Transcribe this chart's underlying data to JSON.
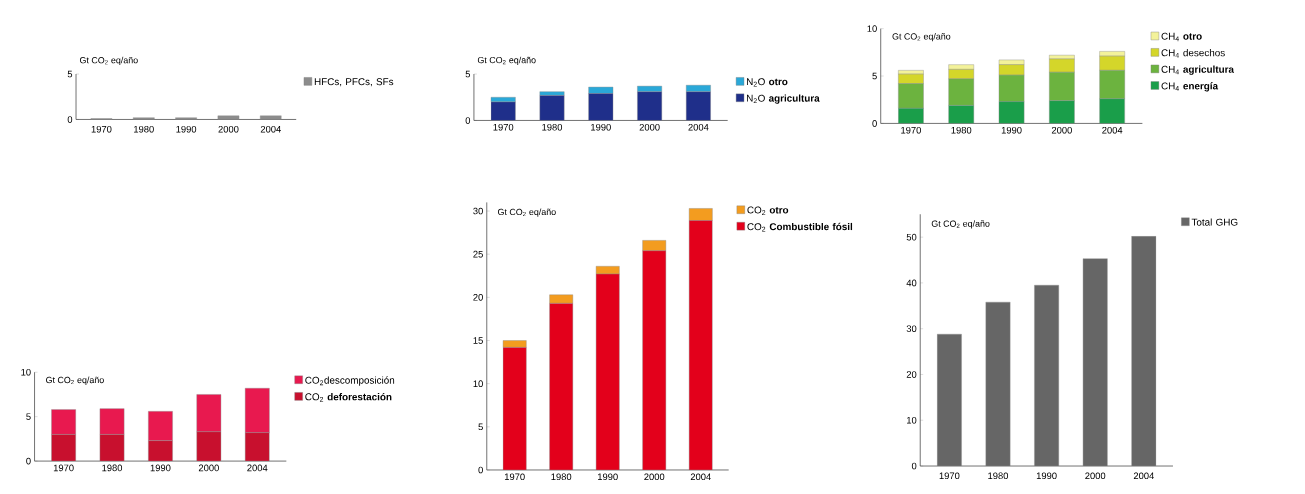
{
  "chart_data": [
    {
      "type": "bar",
      "ylabel": "Gt CO$_{2}$ eq/año",
      "categories": [
        "1970",
        "1980",
        "1990",
        "2000",
        "2004"
      ],
      "ylim": [
        0,
        5
      ],
      "yticks": [
        0,
        5
      ],
      "legend": "right",
      "series": [
        {
          "name": "HFCs, PFCs, SFs",
          "color": "#8c8c8c",
          "values": [
            0.1,
            0.2,
            0.2,
            0.4,
            0.4
          ]
        }
      ]
    },
    {
      "type": "bar",
      "stacked": true,
      "ylabel": "Gt CO$_{2}$ eq/año",
      "categories": [
        "1970",
        "1980",
        "1990",
        "2000",
        "2004"
      ],
      "ylim": [
        0,
        5
      ],
      "yticks": [
        0,
        5
      ],
      "legend": "right",
      "series": [
        {
          "name": "N$_{2}$O **agricultura**",
          "color": "#1f2f8a",
          "values": [
            2.0,
            2.7,
            2.9,
            3.1,
            3.1
          ]
        },
        {
          "name": "N$_{2}$O **otro**",
          "color": "#2aa8d8",
          "values": [
            0.5,
            0.4,
            0.7,
            0.6,
            0.7
          ]
        }
      ]
    },
    {
      "type": "bar",
      "stacked": true,
      "ylabel": "Gt CO$_{2}$ eq/año",
      "categories": [
        "1970",
        "1980",
        "1990",
        "2000",
        "2004"
      ],
      "ylim": [
        0,
        10
      ],
      "yticks": [
        0,
        5,
        10
      ],
      "legend": "right",
      "series": [
        {
          "name": "CH$_{4}$ **energía**",
          "color": "#1a9e4a",
          "values": [
            1.6,
            1.9,
            2.3,
            2.4,
            2.6
          ]
        },
        {
          "name": "CH$_{4}$ **agricultura**",
          "color": "#6cb33f",
          "values": [
            2.6,
            2.8,
            2.8,
            3.0,
            3.0
          ]
        },
        {
          "name": "CH$_{4}$ desechos",
          "color": "#d4d62a",
          "values": [
            1.0,
            1.0,
            1.1,
            1.4,
            1.5
          ]
        },
        {
          "name": "CH$_{4}$ **otro**",
          "color": "#f3f29a",
          "values": [
            0.4,
            0.5,
            0.5,
            0.4,
            0.5
          ]
        }
      ]
    },
    {
      "type": "bar",
      "stacked": true,
      "ylabel": "Gt CO$_{2}$ eq/año",
      "categories": [
        "1970",
        "1980",
        "1990",
        "2000",
        "2004"
      ],
      "ylim": [
        0,
        10
      ],
      "yticks": [
        0,
        5,
        10
      ],
      "legend": "right",
      "series": [
        {
          "name": "CO$_{2}$ **deforestación**",
          "color": "#c8102e",
          "values": [
            3.0,
            3.0,
            2.3,
            3.3,
            3.2
          ]
        },
        {
          "name": "CO$_{2}$descomposición",
          "color": "#e8194f",
          "values": [
            2.8,
            2.9,
            3.3,
            4.2,
            5.0
          ]
        }
      ]
    },
    {
      "type": "bar",
      "stacked": true,
      "ylabel": "Gt CO$_{2}$ eq/año",
      "categories": [
        "1970",
        "1980",
        "1990",
        "2000",
        "2004"
      ],
      "ylim": [
        0,
        31
      ],
      "yticks": [
        0,
        5,
        10,
        15,
        20,
        25,
        30
      ],
      "legend": "right",
      "series": [
        {
          "name": "CO$_{2}$ **Combustible fósil**",
          "color": "#e3001b",
          "values": [
            14.2,
            19.3,
            22.7,
            25.4,
            28.9
          ]
        },
        {
          "name": "CO$_{2}$ **otro**",
          "color": "#f39c1f",
          "values": [
            0.8,
            1.0,
            0.9,
            1.2,
            1.4
          ]
        }
      ]
    },
    {
      "type": "bar",
      "ylabel": "Gt CO$_{2}$ eq/año",
      "categories": [
        "1970",
        "1980",
        "1990",
        "2000",
        "2004"
      ],
      "ylim": [
        0,
        55
      ],
      "yticks": [
        0,
        10,
        20,
        30,
        40,
        50
      ],
      "legend": "right",
      "series": [
        {
          "name": "Total GHG",
          "color": "#666666",
          "values": [
            28.8,
            35.8,
            39.5,
            45.3,
            50.2
          ]
        }
      ]
    }
  ]
}
